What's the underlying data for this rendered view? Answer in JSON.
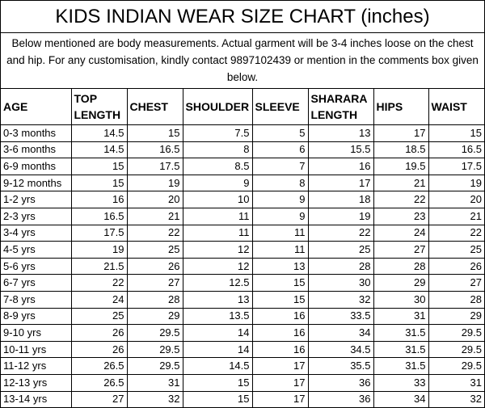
{
  "title": "KIDS INDIAN WEAR SIZE CHART (inches)",
  "note": "Below mentioned are body measurements. Actual garment will be 3-4 inches loose on the chest and hip. For any customisation, kindly contact 9897102439 or mention in the comments box given below.",
  "table": {
    "header": [
      "AGE",
      "TOP LENGTH",
      "CHEST",
      "SHOULDER",
      "SLEEVE",
      "SHARARA LENGTH",
      "HIPS",
      "WAIST"
    ],
    "rows": [
      [
        "0-3 months",
        "14.5",
        "15",
        "7.5",
        "5",
        "13",
        "17",
        "15"
      ],
      [
        "3-6 months",
        "14.5",
        "16.5",
        "8",
        "6",
        "15.5",
        "18.5",
        "16.5"
      ],
      [
        "6-9 months",
        "15",
        "17.5",
        "8.5",
        "7",
        "16",
        "19.5",
        "17.5"
      ],
      [
        "9-12 months",
        "15",
        "19",
        "9",
        "8",
        "17",
        "21",
        "19"
      ],
      [
        "1-2 yrs",
        "16",
        "20",
        "10",
        "9",
        "18",
        "22",
        "20"
      ],
      [
        "2-3 yrs",
        "16.5",
        "21",
        "11",
        "9",
        "19",
        "23",
        "21"
      ],
      [
        "3-4 yrs",
        "17.5",
        "22",
        "11",
        "11",
        "22",
        "24",
        "22"
      ],
      [
        "4-5 yrs",
        "19",
        "25",
        "12",
        "11",
        "25",
        "27",
        "25"
      ],
      [
        "5-6 yrs",
        "21.5",
        "26",
        "12",
        "13",
        "28",
        "28",
        "26"
      ],
      [
        "6-7 yrs",
        "22",
        "27",
        "12.5",
        "15",
        "30",
        "29",
        "27"
      ],
      [
        "7-8 yrs",
        "24",
        "28",
        "13",
        "15",
        "32",
        "30",
        "28"
      ],
      [
        "8-9 yrs",
        "25",
        "29",
        "13.5",
        "16",
        "33.5",
        "31",
        "29"
      ],
      [
        "9-10 yrs",
        "26",
        "29.5",
        "14",
        "16",
        "34",
        "31.5",
        "29.5"
      ],
      [
        "10-11 yrs",
        "26",
        "29.5",
        "14",
        "16",
        "34.5",
        "31.5",
        "29.5"
      ],
      [
        "11-12 yrs",
        "26.5",
        "29.5",
        "14.5",
        "17",
        "35.5",
        "31.5",
        "29.5"
      ],
      [
        "12-13 yrs",
        "26.5",
        "31",
        "15",
        "17",
        "36",
        "33",
        "31"
      ],
      [
        "13-14 yrs",
        "27",
        "32",
        "15",
        "17",
        "36",
        "34",
        "32"
      ]
    ]
  }
}
